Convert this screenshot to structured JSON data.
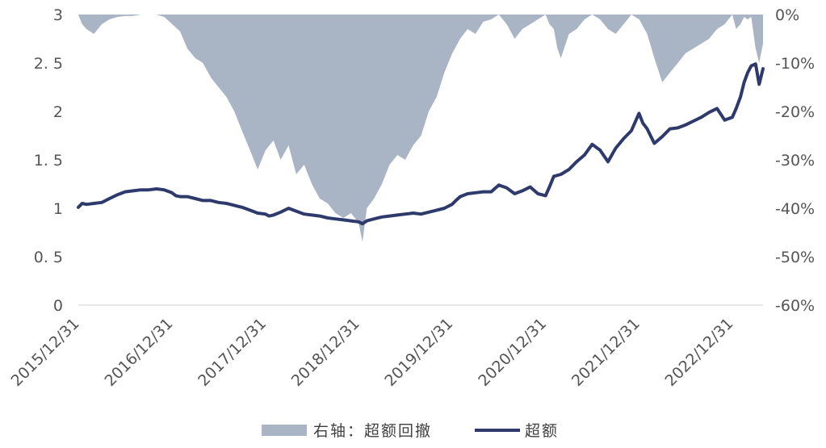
{
  "chart_data": {
    "type": "line",
    "title": "",
    "xlabel": "",
    "ylabel": "",
    "x_ticks": [
      "2015/12/31",
      "2016/12/31",
      "2017/12/31",
      "2018/12/31",
      "2019/12/31",
      "2020/12/31",
      "2021/12/31",
      "2022/12/31"
    ],
    "y_left": {
      "ylim": [
        0,
        3
      ],
      "ticks": [
        "0",
        "0. 5",
        "1",
        "1. 5",
        "2",
        "2. 5",
        "3"
      ]
    },
    "y_right": {
      "ylim": [
        -60,
        0
      ],
      "ticks": [
        "-60%",
        "-50%",
        "-40%",
        "-30%",
        "-20%",
        "-10%",
        "0%"
      ]
    },
    "grid": false,
    "legend_position": "bottom-center",
    "x_domain": [
      "2015-12-31",
      "2023-04-30"
    ],
    "series": [
      {
        "name": "右轴：超额回撤",
        "type": "area",
        "axis": "right",
        "color": "#a9b4c5",
        "points": [
          [
            "2015-12-31",
            0
          ],
          [
            "2016-01-15",
            -2
          ],
          [
            "2016-02-01",
            -3
          ],
          [
            "2016-03-01",
            -4
          ],
          [
            "2016-04-01",
            -2
          ],
          [
            "2016-05-01",
            -1
          ],
          [
            "2016-06-01",
            -0.5
          ],
          [
            "2016-07-01",
            -0.3
          ],
          [
            "2016-08-01",
            -0.3
          ],
          [
            "2016-09-01",
            0
          ],
          [
            "2016-10-01",
            0
          ],
          [
            "2016-11-01",
            0
          ],
          [
            "2016-12-01",
            -0.5
          ],
          [
            "2017-01-01",
            -2
          ],
          [
            "2017-02-01",
            -3.5
          ],
          [
            "2017-03-01",
            -7
          ],
          [
            "2017-04-01",
            -9
          ],
          [
            "2017-05-01",
            -10
          ],
          [
            "2017-06-01",
            -13
          ],
          [
            "2017-07-01",
            -15
          ],
          [
            "2017-08-01",
            -17
          ],
          [
            "2017-09-01",
            -20
          ],
          [
            "2017-10-01",
            -24
          ],
          [
            "2017-11-01",
            -28
          ],
          [
            "2017-12-01",
            -32
          ],
          [
            "2018-01-01",
            -28
          ],
          [
            "2018-02-01",
            -26
          ],
          [
            "2018-03-01",
            -30
          ],
          [
            "2018-04-01",
            -27
          ],
          [
            "2018-05-01",
            -33
          ],
          [
            "2018-06-01",
            -31
          ],
          [
            "2018-07-01",
            -35
          ],
          [
            "2018-08-01",
            -38
          ],
          [
            "2018-09-01",
            -39
          ],
          [
            "2018-10-01",
            -41
          ],
          [
            "2018-11-01",
            -42
          ],
          [
            "2018-12-01",
            -41
          ],
          [
            "2018-12-31",
            -43
          ],
          [
            "2019-01-15",
            -47
          ],
          [
            "2019-02-01",
            -40
          ],
          [
            "2019-03-01",
            -38
          ],
          [
            "2019-04-01",
            -35
          ],
          [
            "2019-05-01",
            -31
          ],
          [
            "2019-06-01",
            -29
          ],
          [
            "2019-07-01",
            -30
          ],
          [
            "2019-08-01",
            -27
          ],
          [
            "2019-09-01",
            -25
          ],
          [
            "2019-10-01",
            -20
          ],
          [
            "2019-11-01",
            -17
          ],
          [
            "2019-12-01",
            -12
          ],
          [
            "2020-01-01",
            -8
          ],
          [
            "2020-02-01",
            -5
          ],
          [
            "2020-03-01",
            -3
          ],
          [
            "2020-04-01",
            -4
          ],
          [
            "2020-05-01",
            -1.5
          ],
          [
            "2020-06-01",
            -1
          ],
          [
            "2020-07-01",
            0
          ],
          [
            "2020-08-01",
            -2
          ],
          [
            "2020-09-01",
            -5
          ],
          [
            "2020-10-01",
            -3
          ],
          [
            "2020-11-01",
            -2
          ],
          [
            "2020-12-01",
            -1
          ],
          [
            "2020-12-31",
            0
          ],
          [
            "2021-01-15",
            -2
          ],
          [
            "2021-02-01",
            -3
          ],
          [
            "2021-02-15",
            -7
          ],
          [
            "2021-03-01",
            -9
          ],
          [
            "2021-04-01",
            -4
          ],
          [
            "2021-05-01",
            -3
          ],
          [
            "2021-06-01",
            -1
          ],
          [
            "2021-07-01",
            0
          ],
          [
            "2021-08-01",
            -1
          ],
          [
            "2021-09-01",
            -3
          ],
          [
            "2021-10-01",
            -4
          ],
          [
            "2021-11-01",
            -2
          ],
          [
            "2021-12-01",
            0
          ],
          [
            "2022-01-01",
            -1
          ],
          [
            "2022-02-01",
            -4
          ],
          [
            "2022-03-01",
            -9
          ],
          [
            "2022-04-01",
            -14
          ],
          [
            "2022-05-01",
            -12
          ],
          [
            "2022-06-01",
            -10
          ],
          [
            "2022-07-01",
            -8
          ],
          [
            "2022-08-01",
            -7
          ],
          [
            "2022-09-01",
            -6
          ],
          [
            "2022-10-01",
            -5
          ],
          [
            "2022-11-01",
            -3
          ],
          [
            "2022-12-01",
            -2
          ],
          [
            "2022-12-31",
            0
          ],
          [
            "2023-01-15",
            -3
          ],
          [
            "2023-02-01",
            -2
          ],
          [
            "2023-02-15",
            -0.5
          ],
          [
            "2023-03-01",
            -1
          ],
          [
            "2023-03-15",
            -0.5
          ],
          [
            "2023-04-01",
            -7
          ],
          [
            "2023-04-15",
            -10
          ],
          [
            "2023-04-30",
            -6
          ]
        ]
      },
      {
        "name": "超额",
        "type": "line",
        "axis": "left",
        "color": "#2d3a6b",
        "points": [
          [
            "2015-12-31",
            1.01
          ],
          [
            "2016-01-15",
            1.05
          ],
          [
            "2016-02-01",
            1.04
          ],
          [
            "2016-03-01",
            1.05
          ],
          [
            "2016-04-01",
            1.06
          ],
          [
            "2016-05-01",
            1.1
          ],
          [
            "2016-06-01",
            1.14
          ],
          [
            "2016-07-01",
            1.17
          ],
          [
            "2016-08-01",
            1.18
          ],
          [
            "2016-09-01",
            1.19
          ],
          [
            "2016-10-01",
            1.19
          ],
          [
            "2016-11-01",
            1.2
          ],
          [
            "2016-12-01",
            1.19
          ],
          [
            "2016-12-31",
            1.16
          ],
          [
            "2017-01-15",
            1.13
          ],
          [
            "2017-02-01",
            1.12
          ],
          [
            "2017-03-01",
            1.12
          ],
          [
            "2017-04-01",
            1.1
          ],
          [
            "2017-05-01",
            1.08
          ],
          [
            "2017-06-01",
            1.08
          ],
          [
            "2017-07-01",
            1.06
          ],
          [
            "2017-08-01",
            1.05
          ],
          [
            "2017-09-01",
            1.03
          ],
          [
            "2017-10-01",
            1.01
          ],
          [
            "2017-11-01",
            0.98
          ],
          [
            "2017-12-01",
            0.95
          ],
          [
            "2017-12-31",
            0.94
          ],
          [
            "2018-01-15",
            0.92
          ],
          [
            "2018-02-01",
            0.93
          ],
          [
            "2018-03-01",
            0.96
          ],
          [
            "2018-04-01",
            1.0
          ],
          [
            "2018-05-01",
            0.97
          ],
          [
            "2018-06-01",
            0.94
          ],
          [
            "2018-07-01",
            0.93
          ],
          [
            "2018-08-01",
            0.92
          ],
          [
            "2018-09-01",
            0.9
          ],
          [
            "2018-10-01",
            0.89
          ],
          [
            "2018-11-01",
            0.88
          ],
          [
            "2018-12-01",
            0.87
          ],
          [
            "2018-12-31",
            0.86
          ],
          [
            "2019-01-15",
            0.84
          ],
          [
            "2019-02-01",
            0.87
          ],
          [
            "2019-03-01",
            0.89
          ],
          [
            "2019-04-01",
            0.91
          ],
          [
            "2019-05-01",
            0.92
          ],
          [
            "2019-06-01",
            0.93
          ],
          [
            "2019-07-01",
            0.94
          ],
          [
            "2019-08-01",
            0.95
          ],
          [
            "2019-09-01",
            0.94
          ],
          [
            "2019-10-01",
            0.96
          ],
          [
            "2019-11-01",
            0.98
          ],
          [
            "2019-12-01",
            1.0
          ],
          [
            "2019-12-31",
            1.04
          ],
          [
            "2020-01-15",
            1.08
          ],
          [
            "2020-02-01",
            1.12
          ],
          [
            "2020-03-01",
            1.15
          ],
          [
            "2020-04-01",
            1.16
          ],
          [
            "2020-05-01",
            1.17
          ],
          [
            "2020-06-01",
            1.17
          ],
          [
            "2020-07-01",
            1.24
          ],
          [
            "2020-08-01",
            1.21
          ],
          [
            "2020-09-01",
            1.15
          ],
          [
            "2020-10-01",
            1.18
          ],
          [
            "2020-11-01",
            1.22
          ],
          [
            "2020-12-01",
            1.15
          ],
          [
            "2020-12-31",
            1.13
          ],
          [
            "2021-01-15",
            1.22
          ],
          [
            "2021-02-01",
            1.33
          ],
          [
            "2021-03-01",
            1.35
          ],
          [
            "2021-04-01",
            1.4
          ],
          [
            "2021-05-01",
            1.48
          ],
          [
            "2021-06-01",
            1.55
          ],
          [
            "2021-07-01",
            1.66
          ],
          [
            "2021-08-01",
            1.6
          ],
          [
            "2021-09-01",
            1.48
          ],
          [
            "2021-10-01",
            1.62
          ],
          [
            "2021-11-01",
            1.72
          ],
          [
            "2021-12-01",
            1.8
          ],
          [
            "2021-12-31",
            1.98
          ],
          [
            "2022-01-15",
            1.88
          ],
          [
            "2022-02-01",
            1.82
          ],
          [
            "2022-03-01",
            1.67
          ],
          [
            "2022-04-01",
            1.74
          ],
          [
            "2022-05-01",
            1.82
          ],
          [
            "2022-06-01",
            1.83
          ],
          [
            "2022-07-01",
            1.86
          ],
          [
            "2022-08-01",
            1.9
          ],
          [
            "2022-09-01",
            1.94
          ],
          [
            "2022-10-01",
            1.99
          ],
          [
            "2022-11-01",
            2.03
          ],
          [
            "2022-12-01",
            1.91
          ],
          [
            "2022-12-31",
            1.94
          ],
          [
            "2023-01-15",
            2.03
          ],
          [
            "2023-02-01",
            2.15
          ],
          [
            "2023-02-15",
            2.3
          ],
          [
            "2023-03-01",
            2.4
          ],
          [
            "2023-03-15",
            2.47
          ],
          [
            "2023-04-01",
            2.49
          ],
          [
            "2023-04-15",
            2.28
          ],
          [
            "2023-04-30",
            2.44
          ]
        ]
      }
    ]
  }
}
